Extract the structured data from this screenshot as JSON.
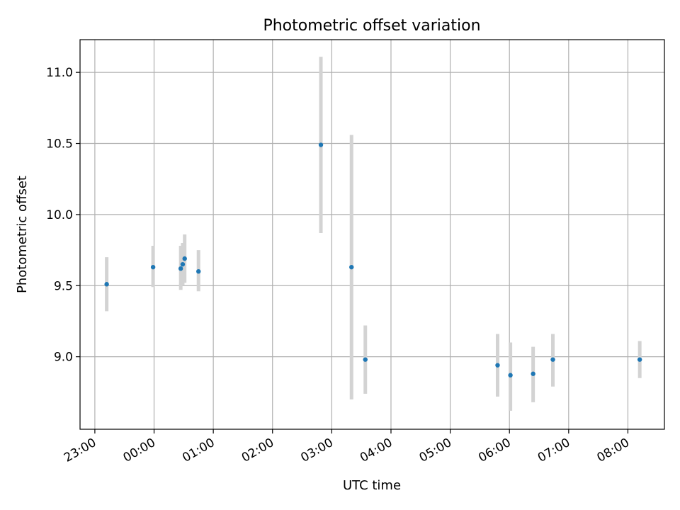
{
  "chart_data": {
    "type": "scatter",
    "title": "Photometric offset variation",
    "xlabel": "UTC time",
    "ylabel": "Photometric offset",
    "x_ticks": [
      "23:00",
      "00:00",
      "01:00",
      "02:00",
      "03:00",
      "04:00",
      "05:00",
      "06:00",
      "07:00",
      "08:00"
    ],
    "y_ticks": [
      "9.0",
      "9.5",
      "10.0",
      "10.5",
      "11.0"
    ],
    "xlim": [
      "22:45",
      "08:37"
    ],
    "ylim": [
      8.49,
      11.23
    ],
    "grid": true,
    "colors": {
      "point": "#1f77b4",
      "errorbar": "#d3d3d3",
      "grid": "#b0b0b0"
    },
    "series": [
      {
        "x": [
          "23:12",
          "23:59",
          "00:27",
          "00:29",
          "00:31",
          "00:45",
          "02:49",
          "03:20",
          "03:34",
          "05:48",
          "06:01",
          "06:24",
          "06:44",
          "08:12"
        ],
        "y": [
          9.51,
          9.63,
          9.62,
          9.65,
          9.69,
          9.6,
          10.49,
          9.63,
          8.98,
          8.94,
          8.87,
          8.88,
          8.98,
          8.98
        ],
        "err_low": [
          9.32,
          9.49,
          9.47,
          9.5,
          9.52,
          9.46,
          9.87,
          8.7,
          8.74,
          8.72,
          8.62,
          8.68,
          8.79,
          8.85
        ],
        "err_high": [
          9.7,
          9.78,
          9.78,
          9.8,
          9.86,
          9.75,
          11.11,
          10.56,
          9.22,
          9.16,
          9.1,
          9.07,
          9.16,
          9.11
        ]
      }
    ]
  }
}
